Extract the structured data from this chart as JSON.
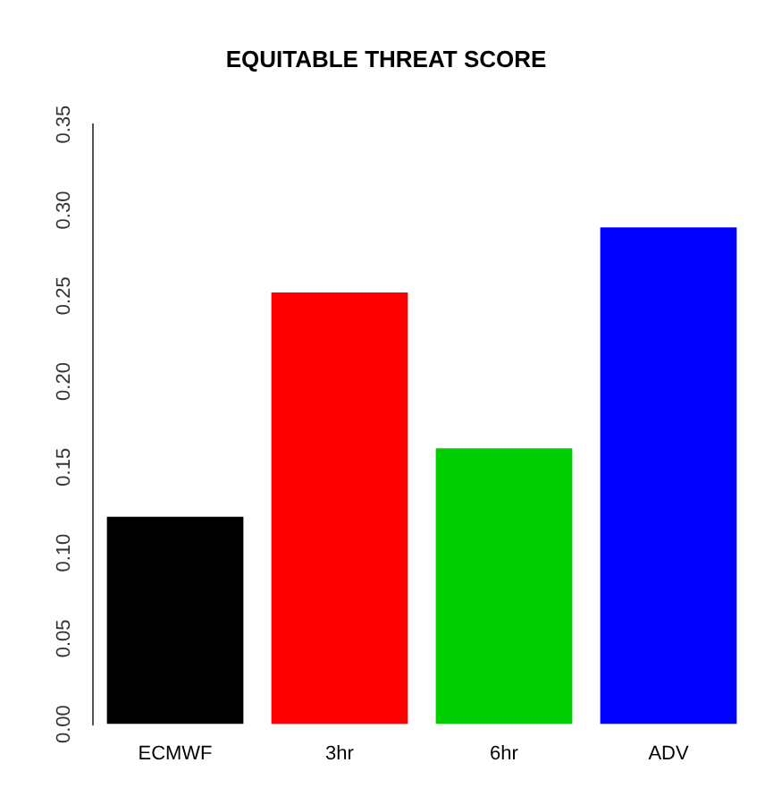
{
  "chart_data": {
    "type": "bar",
    "title": "EQUITABLE THREAT SCORE",
    "categories": [
      "ECMWF",
      "3hr",
      "6hr",
      "ADV"
    ],
    "values": [
      0.121,
      0.252,
      0.161,
      0.29
    ],
    "colors": [
      "#000000",
      "#ff0000",
      "#00cd00",
      "#0000ff"
    ],
    "ylim": [
      0,
      0.35
    ],
    "yticks": [
      {
        "value": 0,
        "label": "0.00"
      },
      {
        "value": 0.05,
        "label": "0.05"
      },
      {
        "value": 0.1,
        "label": "0.10"
      },
      {
        "value": 0.15,
        "label": "0.15"
      },
      {
        "value": 0.2,
        "label": "0.20"
      },
      {
        "value": 0.25,
        "label": "0.25"
      },
      {
        "value": 0.3,
        "label": "0.30"
      },
      {
        "value": 0.35,
        "label": "0.35"
      }
    ],
    "grid": false,
    "legend": false
  }
}
